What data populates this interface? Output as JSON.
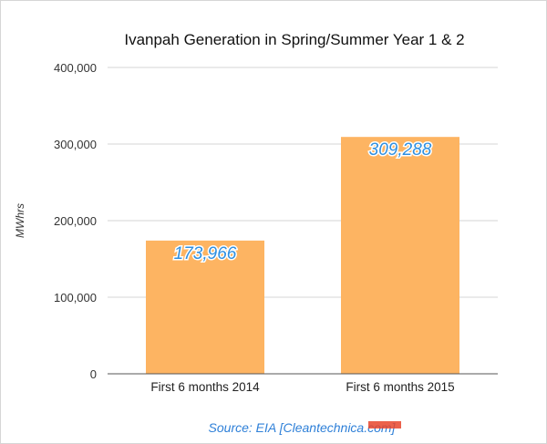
{
  "chart_data": {
    "type": "bar",
    "title": "Ivanpah Generation in Spring/Summer Year 1 & 2",
    "xlabel": "",
    "ylabel": "MWhrs",
    "ylim": [
      0,
      400000
    ],
    "yticks": [
      "0",
      "100,000",
      "200,000",
      "300,000",
      "400,000"
    ],
    "categories": [
      "First 6 months 2014",
      "First 6 months 2015"
    ],
    "values": [
      173966,
      309288
    ],
    "value_labels": [
      "173,966",
      "309,288"
    ],
    "grid": true,
    "legend": "none"
  },
  "source": "Source: EIA [Cleantechnica.com]",
  "colors": {
    "bar": "#fdb462",
    "value_label": "#2f8fe0",
    "source_text": "#2f80d8",
    "source_mark": "#e8452c"
  }
}
